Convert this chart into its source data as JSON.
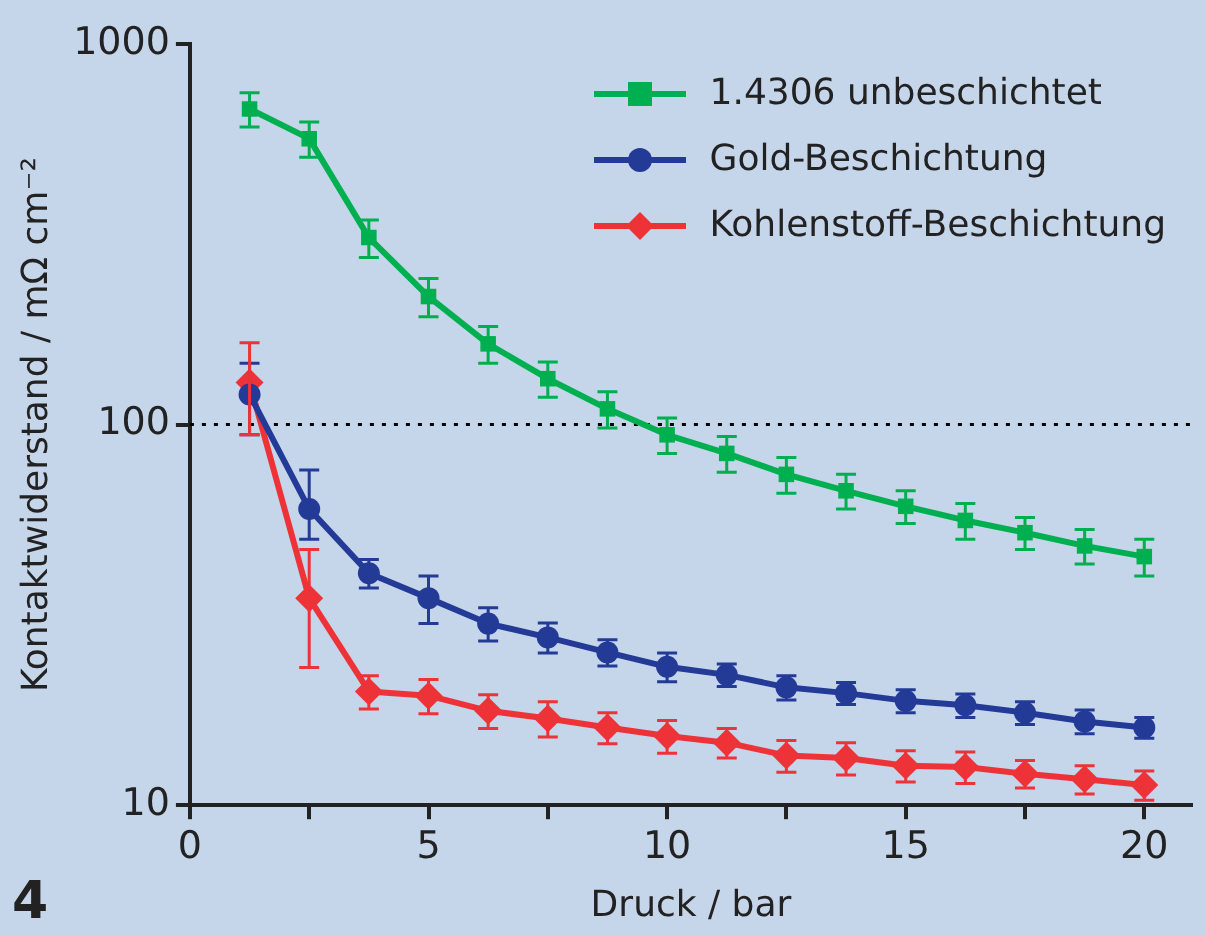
{
  "chart_data": {
    "type": "line",
    "xlabel": "Druck / bar",
    "ylabel": "Kontaktwiderstand / mΩ cm⁻²",
    "annotations": [
      "4"
    ],
    "x": [
      1.25,
      2.5,
      3.75,
      5,
      6.25,
      7.5,
      8.75,
      10,
      11.25,
      12.5,
      13.75,
      15,
      16.25,
      17.5,
      18.75,
      20
    ],
    "xlim": [
      0,
      21
    ],
    "xticks": [
      0,
      {
        "value": 2.5,
        "label": null
      },
      5,
      {
        "value": 7.5,
        "label": null
      },
      10,
      {
        "value": 12.5,
        "label": null
      },
      15,
      {
        "value": 17.5,
        "label": null
      },
      20
    ],
    "ylim": [
      10,
      1000
    ],
    "yticks": [
      10,
      100,
      1000
    ],
    "log": "y",
    "grid": false,
    "legend": "top right",
    "line_style": "solid",
    "ref_lines": [
      {
        "axis": "y",
        "value": 100,
        "color": "#000000",
        "line_style": "dotted"
      }
    ],
    "series": [
      {
        "name": "1.4306 unbeschichtet",
        "color": "#00b050",
        "marker": "square",
        "values": [
          675,
          564,
          310,
          217,
          163,
          132,
          110,
          94,
          84,
          74,
          67,
          61,
          56,
          52,
          48,
          45
        ],
        "errors": [
          70,
          60,
          35,
          25,
          18,
          14,
          12,
          10,
          9,
          8,
          7,
          6,
          6,
          5,
          5,
          5
        ]
      },
      {
        "name": "Gold-Beschichtung",
        "color": "#233a97",
        "marker": "circle",
        "values": [
          120,
          60,
          40.7,
          35,
          30,
          27.6,
          25.2,
          23.1,
          22,
          20.4,
          19.7,
          18.8,
          18.3,
          17.5,
          16.6,
          16
        ],
        "errors": [
          [
            94,
            145
          ],
          [
            50,
            76
          ],
          3.5,
          5,
          3,
          2.5,
          2,
          2,
          1.5,
          1.5,
          1.3,
          1.3,
          1.3,
          1.2,
          1.2,
          1
        ]
      },
      {
        "name": "Kohlenstoff-Beschichtung",
        "color": "#ee3338",
        "marker": "diamond",
        "values": [
          129,
          35,
          19.9,
          19.4,
          17.7,
          16.9,
          16,
          15.2,
          14.6,
          13.5,
          13.3,
          12.7,
          12.6,
          12.1,
          11.7,
          11.3
        ],
        "errors": [
          [
            94,
            164
          ],
          [
            23,
            47
          ],
          2,
          2,
          1.8,
          1.8,
          1.5,
          1.5,
          1.3,
          1.3,
          1.3,
          1.2,
          1.2,
          1,
          1,
          1
        ]
      }
    ]
  }
}
